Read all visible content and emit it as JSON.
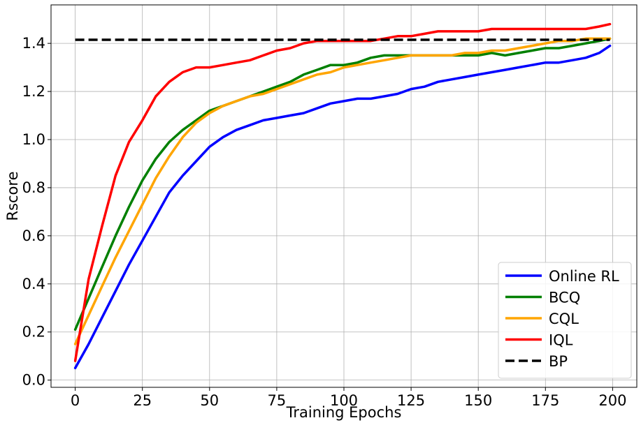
{
  "chart_data": {
    "type": "line",
    "title": "",
    "xlabel": "Training Epochs",
    "ylabel": "Rscore",
    "xlim": [
      -9,
      209
    ],
    "ylim": [
      -0.03,
      1.56
    ],
    "x_ticks": [
      0,
      25,
      50,
      75,
      100,
      125,
      150,
      175,
      200
    ],
    "y_ticks": [
      0.0,
      0.2,
      0.4,
      0.6,
      0.8,
      1.0,
      1.2,
      1.4
    ],
    "x_tick_labels": [
      "0",
      "25",
      "50",
      "75",
      "100",
      "125",
      "150",
      "175",
      "200"
    ],
    "y_tick_labels": [
      "0.0",
      "0.2",
      "0.4",
      "0.6",
      "0.8",
      "1.0",
      "1.2",
      "1.4"
    ],
    "grid": true,
    "legend_position": "lower-right",
    "series": [
      {
        "name": "Online RL",
        "color": "#0000ff",
        "style": "solid",
        "x": [
          0,
          5,
          10,
          15,
          20,
          25,
          30,
          35,
          40,
          45,
          50,
          55,
          60,
          65,
          70,
          75,
          80,
          85,
          90,
          95,
          100,
          105,
          110,
          115,
          120,
          125,
          130,
          135,
          140,
          145,
          150,
          155,
          160,
          165,
          170,
          175,
          180,
          185,
          190,
          195,
          199
        ],
        "values": [
          0.05,
          0.15,
          0.26,
          0.37,
          0.48,
          0.58,
          0.68,
          0.78,
          0.85,
          0.91,
          0.97,
          1.01,
          1.04,
          1.06,
          1.08,
          1.09,
          1.1,
          1.11,
          1.13,
          1.15,
          1.16,
          1.17,
          1.17,
          1.18,
          1.19,
          1.21,
          1.22,
          1.24,
          1.25,
          1.26,
          1.27,
          1.28,
          1.29,
          1.3,
          1.31,
          1.32,
          1.32,
          1.33,
          1.34,
          1.36,
          1.39
        ]
      },
      {
        "name": "BCQ",
        "color": "#008000",
        "style": "solid",
        "x": [
          0,
          5,
          10,
          15,
          20,
          25,
          30,
          35,
          40,
          45,
          50,
          55,
          60,
          65,
          70,
          75,
          80,
          85,
          90,
          95,
          100,
          105,
          110,
          115,
          120,
          125,
          130,
          135,
          140,
          145,
          150,
          155,
          160,
          165,
          170,
          175,
          180,
          185,
          190,
          195,
          199
        ],
        "values": [
          0.21,
          0.34,
          0.47,
          0.6,
          0.72,
          0.83,
          0.92,
          0.99,
          1.04,
          1.08,
          1.12,
          1.14,
          1.16,
          1.18,
          1.2,
          1.22,
          1.24,
          1.27,
          1.29,
          1.31,
          1.31,
          1.32,
          1.34,
          1.35,
          1.35,
          1.35,
          1.35,
          1.35,
          1.35,
          1.35,
          1.35,
          1.36,
          1.35,
          1.36,
          1.37,
          1.38,
          1.38,
          1.39,
          1.4,
          1.41,
          1.42
        ]
      },
      {
        "name": "CQL",
        "color": "#ffa500",
        "style": "solid",
        "x": [
          0,
          5,
          10,
          15,
          20,
          25,
          30,
          35,
          40,
          45,
          50,
          55,
          60,
          65,
          70,
          75,
          80,
          85,
          90,
          95,
          100,
          105,
          110,
          115,
          120,
          125,
          130,
          135,
          140,
          145,
          150,
          155,
          160,
          165,
          170,
          175,
          180,
          185,
          190,
          195,
          199
        ],
        "values": [
          0.15,
          0.27,
          0.39,
          0.51,
          0.62,
          0.73,
          0.84,
          0.93,
          1.01,
          1.07,
          1.11,
          1.14,
          1.16,
          1.18,
          1.19,
          1.21,
          1.23,
          1.25,
          1.27,
          1.28,
          1.3,
          1.31,
          1.32,
          1.33,
          1.34,
          1.35,
          1.35,
          1.35,
          1.35,
          1.36,
          1.36,
          1.37,
          1.37,
          1.38,
          1.39,
          1.4,
          1.41,
          1.41,
          1.42,
          1.42,
          1.42
        ]
      },
      {
        "name": "IQL",
        "color": "#ff0000",
        "style": "solid",
        "x": [
          0,
          5,
          10,
          15,
          20,
          25,
          30,
          35,
          40,
          45,
          50,
          55,
          60,
          65,
          70,
          75,
          80,
          85,
          90,
          95,
          100,
          105,
          110,
          115,
          120,
          125,
          130,
          135,
          140,
          145,
          150,
          155,
          160,
          165,
          170,
          175,
          180,
          185,
          190,
          195,
          199
        ],
        "values": [
          0.08,
          0.42,
          0.64,
          0.85,
          0.99,
          1.08,
          1.18,
          1.24,
          1.28,
          1.3,
          1.3,
          1.31,
          1.32,
          1.33,
          1.35,
          1.37,
          1.38,
          1.4,
          1.41,
          1.41,
          1.41,
          1.41,
          1.41,
          1.42,
          1.43,
          1.43,
          1.44,
          1.45,
          1.45,
          1.45,
          1.45,
          1.46,
          1.46,
          1.46,
          1.46,
          1.46,
          1.46,
          1.46,
          1.46,
          1.47,
          1.48
        ]
      },
      {
        "name": "BP",
        "color": "#000000",
        "style": "dashed",
        "x": [
          0,
          199
        ],
        "values": [
          1.415,
          1.415
        ]
      }
    ]
  }
}
